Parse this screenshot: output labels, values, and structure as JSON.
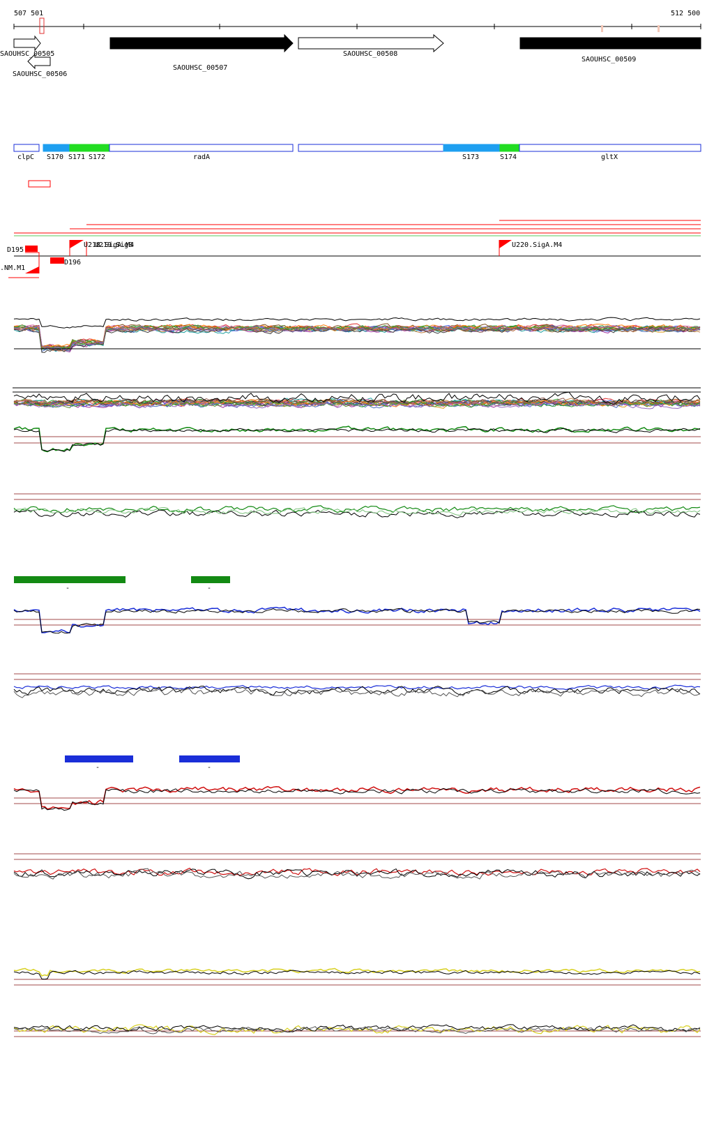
{
  "coordinates": {
    "start_label": "507 501",
    "end_label": "512 500"
  },
  "genes": [
    {
      "id": "SAOUHSC_00505",
      "label": "SAOUHSC_00505",
      "strand": "+",
      "fill": "white"
    },
    {
      "id": "SAOUHSC_00506",
      "label": "SAOUHSC_00506",
      "strand": "-",
      "fill": "white"
    },
    {
      "id": "SAOUHSC_00507",
      "label": "SAOUHSC_00507",
      "strand": "+",
      "fill": "black"
    },
    {
      "id": "SAOUHSC_00508",
      "label": "SAOUHSC_00508",
      "strand": "+",
      "fill": "white"
    },
    {
      "id": "SAOUHSC_00509",
      "label": "SAOUHSC_00509",
      "strand": "+",
      "fill": "black"
    }
  ],
  "segments": [
    {
      "label": "clpC",
      "color": "#ffffff"
    },
    {
      "label": "S170",
      "color": "#1e9ff0"
    },
    {
      "label": "S171",
      "color": "#22dd22"
    },
    {
      "label": "S172",
      "color": ""
    },
    {
      "label": "radA",
      "color": "#ffffff"
    },
    {
      "label": "S173",
      "color": "#1e9ff0"
    },
    {
      "label": "S174",
      "color": "#22dd22"
    },
    {
      "label": "gltX",
      "color": "#ffffff"
    }
  ],
  "features": [
    {
      "label": "D195"
    },
    {
      "label": ".NM.M1"
    },
    {
      "label": "D196"
    },
    {
      "label": "U218.SigA.M4"
    },
    {
      "label": "U219.SigB"
    },
    {
      "label": "U220.SigA.M4"
    }
  ],
  "bar_labels": {
    "green_1": "-",
    "green_2": "-",
    "blue_1": "-",
    "blue_2": "-"
  },
  "colors": {
    "segment_border": "#1a2ed8",
    "feature_red": "#ff0000",
    "track_green": "#138a13",
    "track_blue": "#1a2ed8",
    "track_red": "#d01010",
    "track_yellow": "#d8d020",
    "ref_line": "#a04848"
  }
}
